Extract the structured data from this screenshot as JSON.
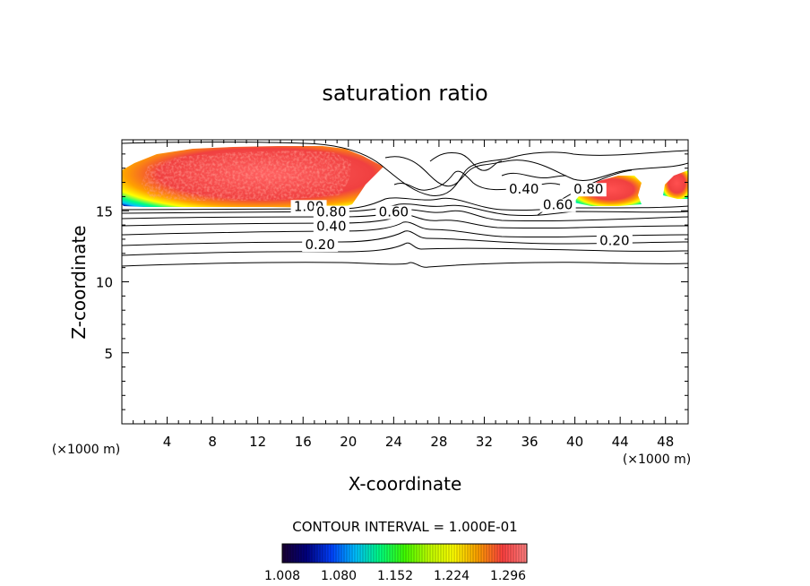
{
  "chart_data": {
    "type": "contour",
    "title": "saturation ratio",
    "xlabel": "X-coordinate",
    "ylabel": "Z-coordinate",
    "x_unit": "(×1000 m)",
    "x_unit_right": "(×1000 m)",
    "xlim": [
      0,
      50
    ],
    "ylim": [
      0,
      20
    ],
    "x_ticks": [
      4,
      8,
      12,
      16,
      20,
      24,
      28,
      32,
      36,
      40,
      44,
      48
    ],
    "y_ticks": [
      5,
      10,
      15
    ],
    "contour_interval_text": "CONTOUR INTERVAL = 1.000E-01",
    "colorbar": {
      "min": 1.008,
      "max": 1.32,
      "tick_labels": [
        "1.008",
        "1.080",
        "1.152",
        "1.224",
        "1.296"
      ],
      "colors": [
        "#1a0033",
        "#000080",
        "#0040ff",
        "#00c0ff",
        "#00ff80",
        "#40ff00",
        "#c0ff00",
        "#ffff00",
        "#ffa000",
        "#ff4040",
        "#ff8080"
      ]
    },
    "contour_labels": [
      {
        "text": "1.00",
        "x": 16.5,
        "z": 15.0
      },
      {
        "text": "0.80",
        "x": 18.5,
        "z": 14.6
      },
      {
        "text": "0.60",
        "x": 24.0,
        "z": 14.6
      },
      {
        "text": "0.40",
        "x": 18.5,
        "z": 13.6
      },
      {
        "text": "0.20",
        "x": 17.5,
        "z": 12.3
      },
      {
        "text": "0.40",
        "x": 35.5,
        "z": 16.2
      },
      {
        "text": "0.20",
        "x": 43.5,
        "z": 12.6
      },
      {
        "text": "0.60",
        "x": 38.5,
        "z": 15.1
      },
      {
        "text": "0.80",
        "x": 41.2,
        "z": 16.2
      }
    ],
    "colored_regions": [
      {
        "name": "supersaturated-west",
        "x": [
          0,
          23
        ],
        "z": [
          15.0,
          19.0
        ]
      },
      {
        "name": "supersaturated-east",
        "x": [
          40.5,
          46
        ],
        "z": [
          15.0,
          17.6
        ]
      },
      {
        "name": "supersaturated-east-edge",
        "x": [
          47,
          50
        ],
        "z": [
          15.8,
          18.2
        ]
      }
    ]
  }
}
